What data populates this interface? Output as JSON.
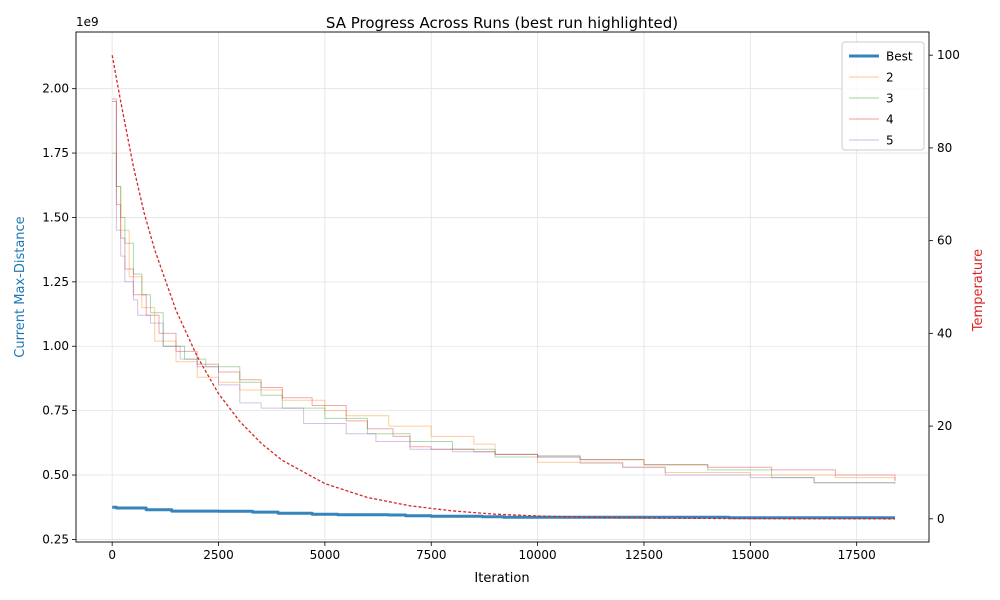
{
  "chart_data": {
    "type": "line",
    "title": "SA Progress Across Runs (best run highlighted)",
    "xlabel": "Iteration",
    "ylabel": "Current Max-Distance",
    "ylabel_color": "#1f77b4",
    "y2label": "Temperature",
    "y2label_color": "#d62728",
    "y_offset_label": "1e9",
    "xlim": [
      -850,
      19200
    ],
    "ylim": [
      0.24,
      2.22
    ],
    "y2lim": [
      -5,
      105
    ],
    "x_ticks": [
      0,
      2500,
      5000,
      7500,
      10000,
      12500,
      15000,
      17500
    ],
    "x_tick_labels": [
      "0",
      "2500",
      "5000",
      "7500",
      "10000",
      "12500",
      "15000",
      "17500"
    ],
    "y_ticks": [
      0.25,
      0.5,
      0.75,
      1.0,
      1.25,
      1.5,
      1.75,
      2.0
    ],
    "y_tick_labels": [
      "0.25",
      "0.50",
      "0.75",
      "1.00",
      "1.25",
      "1.50",
      "1.75",
      "2.00"
    ],
    "y2_ticks": [
      0,
      20,
      40,
      60,
      80,
      100
    ],
    "y2_tick_labels": [
      "0",
      "20",
      "40",
      "60",
      "80",
      "100"
    ],
    "grid": true,
    "legend_position": "top-right",
    "series": [
      {
        "name": "Best",
        "color": "#1f77b4",
        "emphasis": "thick",
        "x": [
          0,
          100,
          800,
          1400,
          2500,
          3300,
          3900,
          4700,
          5300,
          6500,
          6900,
          7500,
          8700,
          9200,
          14500,
          18400
        ],
        "y": [
          0.375,
          0.372,
          0.365,
          0.36,
          0.359,
          0.356,
          0.352,
          0.348,
          0.346,
          0.345,
          0.342,
          0.34,
          0.338,
          0.336,
          0.334,
          0.334
        ]
      },
      {
        "name": "2",
        "color": "#ff7f0e",
        "emphasis": "faint",
        "x": [
          0,
          100,
          200,
          400,
          700,
          1000,
          1500,
          2000,
          2500,
          3000,
          4000,
          5000,
          5500,
          6500,
          7500,
          8500,
          9000,
          10000,
          11000,
          12000,
          13000,
          15000,
          17000,
          18400
        ],
        "y": [
          1.95,
          1.62,
          1.45,
          1.27,
          1.15,
          1.02,
          0.94,
          0.88,
          0.86,
          0.83,
          0.79,
          0.75,
          0.73,
          0.69,
          0.65,
          0.62,
          0.58,
          0.55,
          0.545,
          0.53,
          0.51,
          0.5,
          0.49,
          0.48
        ]
      },
      {
        "name": "3",
        "color": "#2ca02c",
        "emphasis": "faint",
        "x": [
          0,
          100,
          200,
          300,
          500,
          700,
          900,
          1200,
          1700,
          2200,
          3000,
          3500,
          4000,
          5000,
          6000,
          7000,
          8000,
          9000,
          10000,
          11000,
          12500,
          14000,
          15500,
          16500,
          18400
        ],
        "y": [
          1.75,
          1.62,
          1.5,
          1.4,
          1.28,
          1.2,
          1.13,
          1.0,
          0.95,
          0.92,
          0.86,
          0.81,
          0.76,
          0.72,
          0.66,
          0.63,
          0.6,
          0.57,
          0.575,
          0.56,
          0.54,
          0.52,
          0.49,
          0.47,
          0.47
        ]
      },
      {
        "name": "4",
        "color": "#d62728",
        "emphasis": "faint",
        "x": [
          0,
          100,
          200,
          300,
          500,
          800,
          1100,
          1500,
          2000,
          2500,
          3000,
          3500,
          4000,
          4700,
          5500,
          6000,
          6600,
          7000,
          7500,
          8500,
          9000,
          10000,
          11000,
          12500,
          14000,
          15500,
          17000,
          18400
        ],
        "y": [
          1.96,
          1.55,
          1.42,
          1.3,
          1.2,
          1.12,
          1.05,
          0.98,
          0.93,
          0.9,
          0.87,
          0.84,
          0.8,
          0.77,
          0.71,
          0.68,
          0.65,
          0.61,
          0.6,
          0.59,
          0.58,
          0.57,
          0.56,
          0.54,
          0.53,
          0.52,
          0.5,
          0.475
        ]
      },
      {
        "name": "5",
        "color": "#9467bd",
        "emphasis": "faint",
        "x": [
          0,
          100,
          200,
          300,
          500,
          600,
          900,
          1200,
          1600,
          2000,
          2500,
          3000,
          3500,
          4500,
          5500,
          6200,
          7000,
          8000,
          9000,
          10000,
          11000,
          12000,
          13000,
          15000,
          16500,
          18400
        ],
        "y": [
          1.95,
          1.45,
          1.35,
          1.25,
          1.18,
          1.12,
          1.09,
          1.0,
          0.95,
          0.92,
          0.85,
          0.78,
          0.76,
          0.7,
          0.66,
          0.63,
          0.6,
          0.59,
          0.58,
          0.57,
          0.55,
          0.53,
          0.5,
          0.49,
          0.47,
          0.465
        ]
      }
    ],
    "temperature_series": {
      "color": "#d62728",
      "style": "dashed",
      "x": [
        0,
        200,
        500,
        750,
        1000,
        1500,
        2000,
        2500,
        3000,
        3500,
        4000,
        5000,
        6000,
        7000,
        8000,
        9000,
        10000,
        11000,
        12000,
        14000,
        16000,
        18400
      ],
      "y": [
        100,
        90,
        76,
        66,
        58,
        45,
        35,
        27,
        21,
        16.3,
        12.6,
        7.6,
        4.6,
        2.8,
        1.7,
        1.0,
        0.6,
        0.37,
        0.22,
        0.08,
        0.03,
        0.01
      ]
    }
  }
}
